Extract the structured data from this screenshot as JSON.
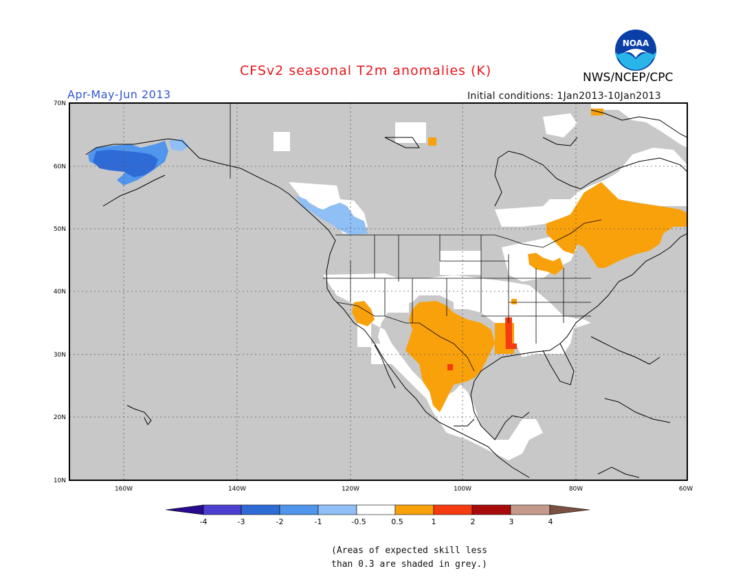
{
  "header": {
    "title": "CFSv2 seasonal T2m anomalies (K)",
    "period": "Apr-May-Jun 2013",
    "initial_conditions": "Initial conditions: 1Jan2013-10Jan2013",
    "agency": "NWS/NCEP/CPC",
    "logo_text": "NOAA"
  },
  "map": {
    "region": "North America",
    "lat_labels": [
      "70N",
      "60N",
      "50N",
      "40N",
      "30N",
      "20N",
      "10N"
    ],
    "lon_labels": [
      "160W",
      "140W",
      "120W",
      "100W",
      "80W",
      "60W"
    ],
    "background_color": "#c8c8c8",
    "land_neutral_color": "#ffffff",
    "anomaly_regions": [
      {
        "name": "alaska-cold",
        "category": "-3"
      },
      {
        "name": "alaska-cool",
        "category": "-1"
      },
      {
        "name": "pacific-northwest-cool",
        "category": "-1"
      },
      {
        "name": "quebec-warm",
        "category": "1"
      },
      {
        "name": "great-lakes-warm",
        "category": "1"
      },
      {
        "name": "southern-plains-warm",
        "category": "1"
      },
      {
        "name": "southwest-warm",
        "category": "1"
      },
      {
        "name": "mississippi-warm",
        "category": "1"
      },
      {
        "name": "mississippi-hot",
        "category": "2"
      },
      {
        "name": "mexico-hot-spot",
        "category": "2"
      }
    ]
  },
  "colorbar": {
    "tick_labels": [
      "-4",
      "-3",
      "-2",
      "-1",
      "-0.5",
      "0.5",
      "1",
      "2",
      "3",
      "4"
    ],
    "colors": [
      "#2a0a8c",
      "#4c3fd0",
      "#2f6bd6",
      "#4f96ec",
      "#8fbff5",
      "#ffffff",
      "#f9a10b",
      "#f53b10",
      "#a80b0b",
      "#c49a8a",
      "#7a5040"
    ]
  },
  "footnote": {
    "line1": "(Areas of expected skill less",
    "line2": "than 0.3 are shaded in grey.)"
  }
}
